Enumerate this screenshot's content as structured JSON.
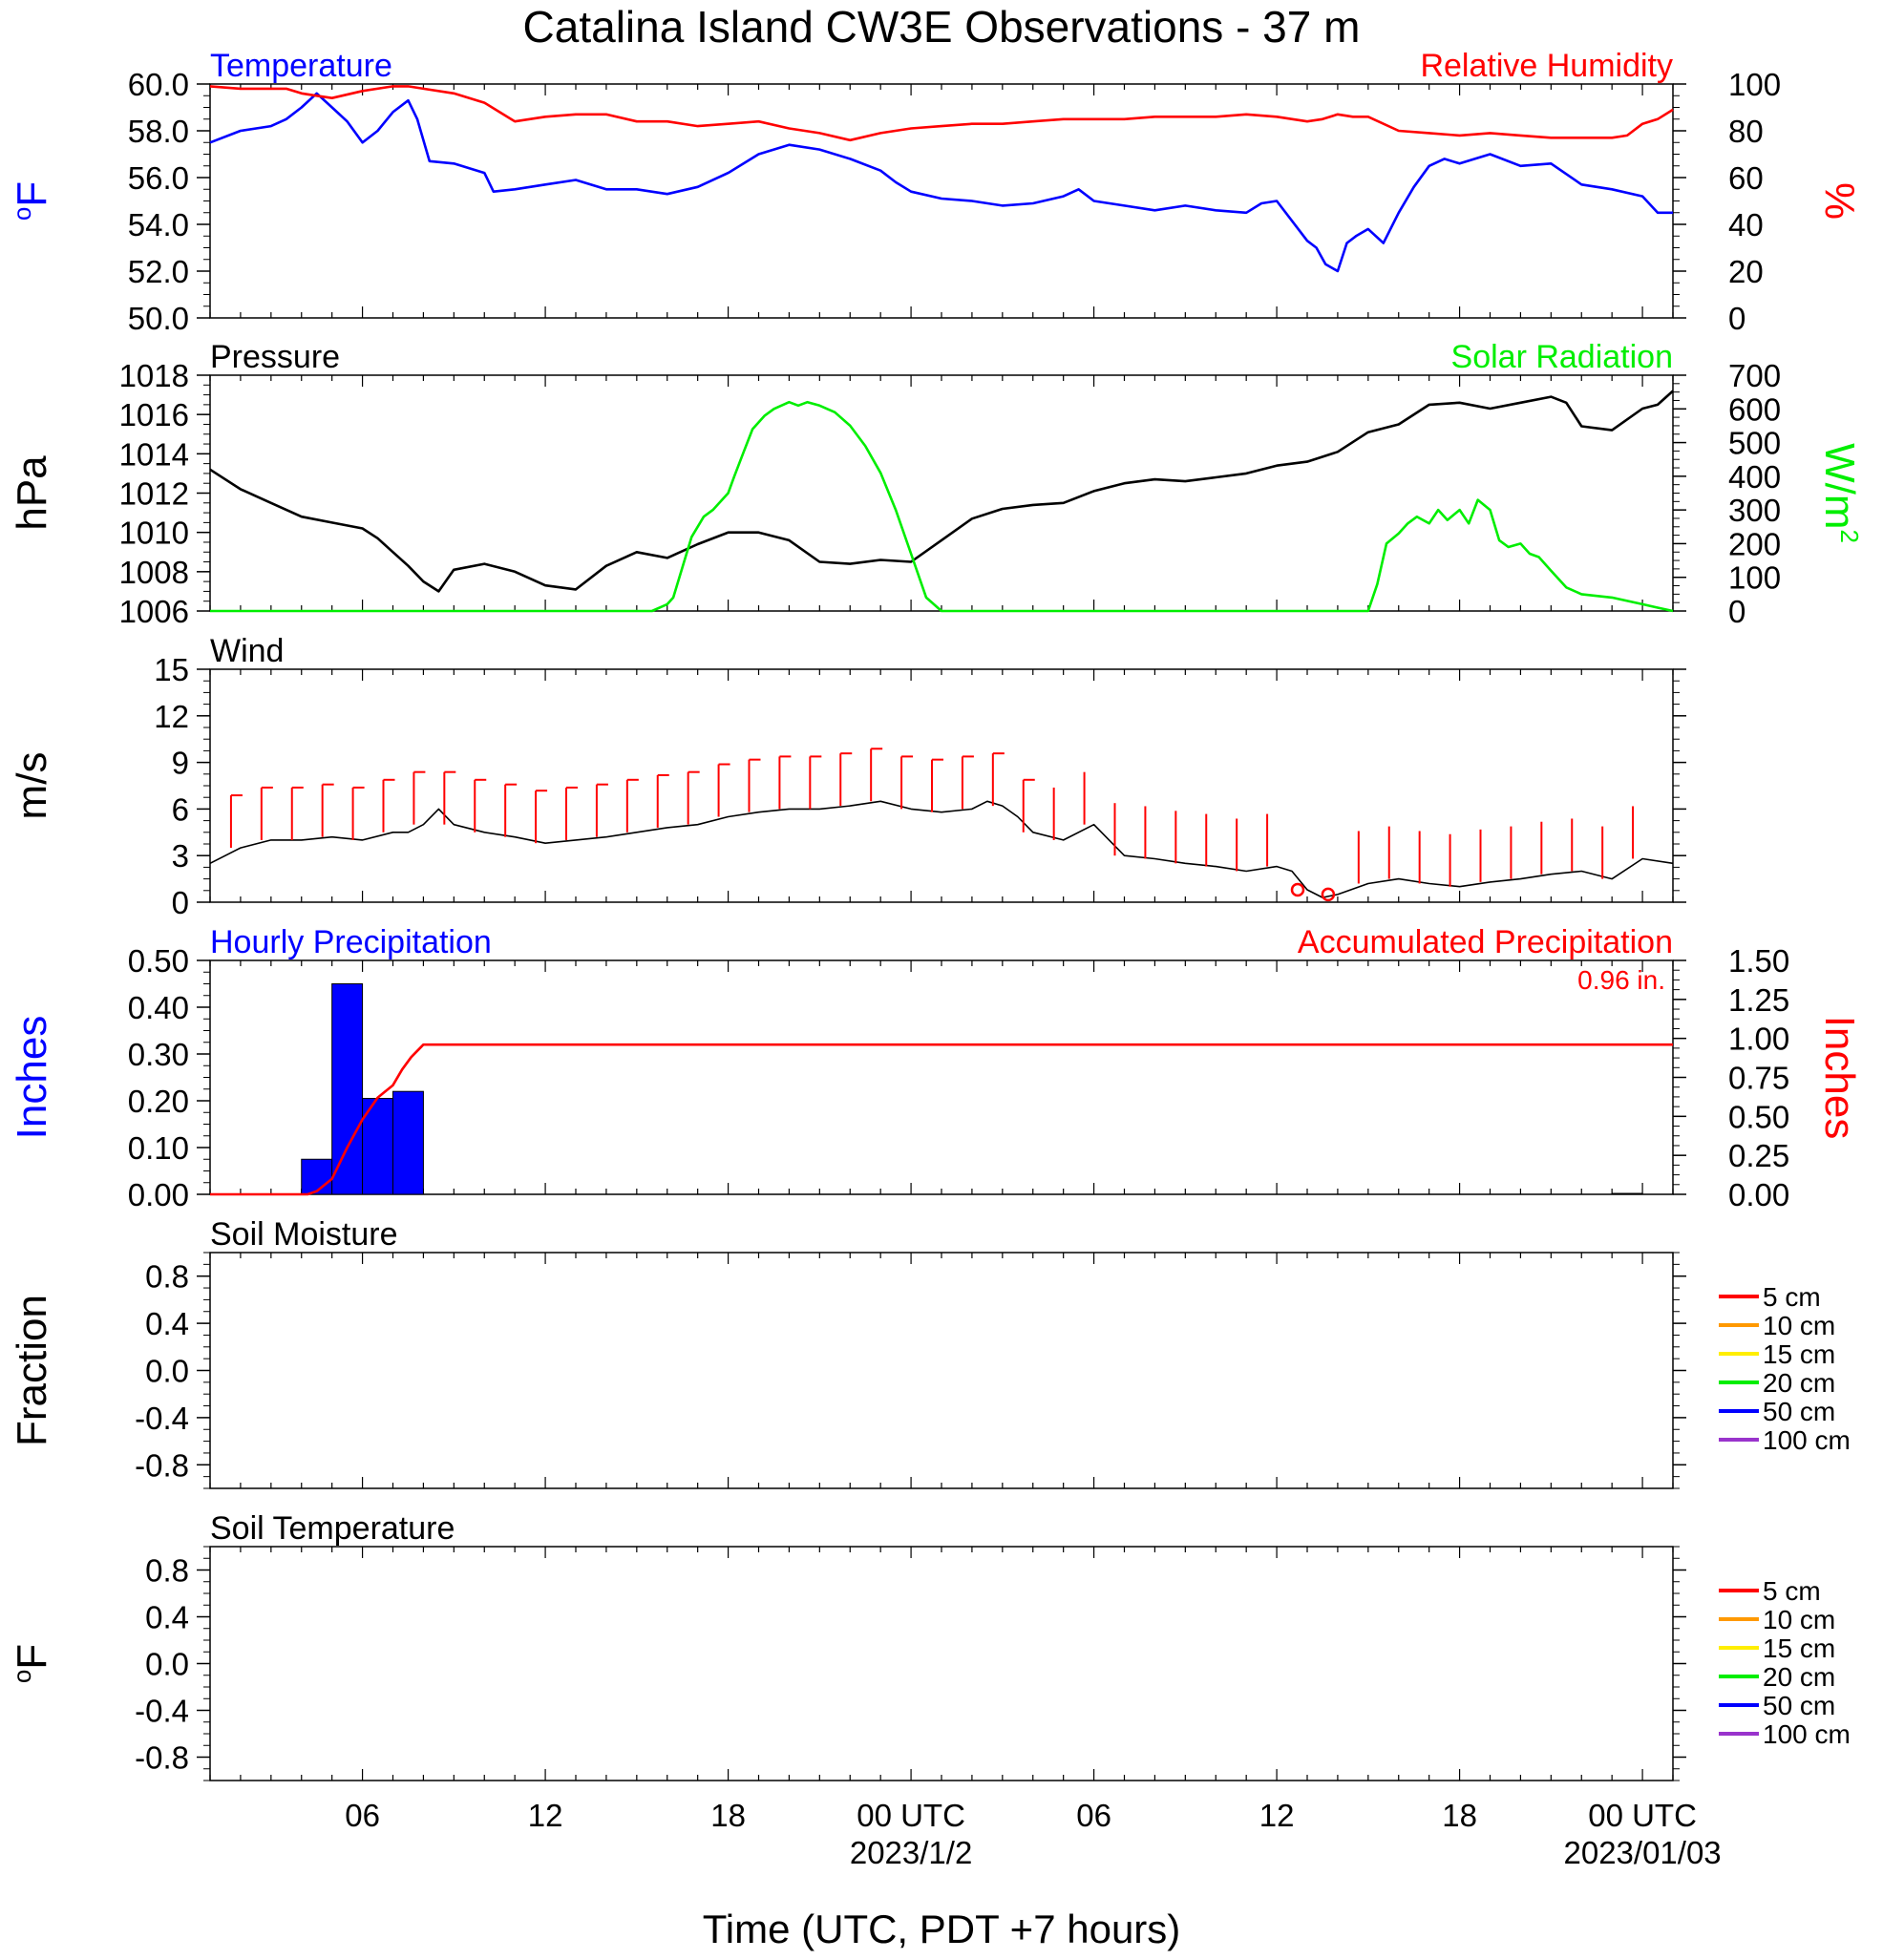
{
  "title": "Catalina Island CW3E Observations - 37 m",
  "x_axis": {
    "label": "Time (UTC, PDT +7 hours)",
    "range_hours": [
      0,
      48
    ],
    "ticks": [
      {
        "h": 5,
        "label": "06"
      },
      {
        "h": 11,
        "label": "12"
      },
      {
        "h": 17,
        "label": "18"
      },
      {
        "h": 23,
        "label": "00 UTC"
      },
      {
        "h": 29,
        "label": "06"
      },
      {
        "h": 35,
        "label": "12"
      },
      {
        "h": 41,
        "label": "18"
      },
      {
        "h": 47,
        "label": "00 UTC"
      }
    ],
    "date_labels": [
      {
        "h": 23,
        "label": "2023/1/2"
      },
      {
        "h": 47,
        "label": "2023/01/03"
      }
    ]
  },
  "colors": {
    "temperature": "#0000ff",
    "humidity": "#ff0000",
    "pressure": "#000000",
    "solar": "#00ee00",
    "wind": "#000000",
    "barb": "#ff0000",
    "hourly": "#0000ff",
    "accum": "#ff0000"
  },
  "chart_data": [
    {
      "type": "line",
      "panel": "temperature-humidity",
      "left_title": "Temperature",
      "right_title": "Relative Humidity",
      "left_ylabel": "oF",
      "right_ylabel": "%",
      "left_ylim": [
        50,
        60
      ],
      "right_ylim": [
        0,
        100
      ],
      "left_ticks": [
        "50.0",
        "52.0",
        "54.0",
        "56.0",
        "58.0",
        "60.0"
      ],
      "right_ticks": [
        "0",
        "20",
        "40",
        "60",
        "80",
        "100"
      ],
      "series": [
        {
          "key": "temperature",
          "axis": "left",
          "x": [
            0,
            1,
            2,
            2.5,
            3,
            3.5,
            4,
            4.5,
            5,
            5.5,
            6,
            6.5,
            6.8,
            7.2,
            8,
            9,
            9.3,
            10,
            11,
            12,
            13,
            14,
            15,
            16,
            17,
            18,
            19,
            20,
            21,
            22,
            22.5,
            23,
            24,
            25,
            26,
            27,
            28,
            28.5,
            29,
            30,
            31,
            32,
            33,
            34,
            34.5,
            35,
            36,
            36.3,
            36.6,
            37,
            37.3,
            37.6,
            38,
            38.5,
            39,
            39.5,
            40,
            40.5,
            41,
            41.5,
            42,
            43,
            44,
            45,
            46,
            47,
            47.5,
            48
          ],
          "values": [
            57.5,
            58.0,
            58.2,
            58.5,
            59.0,
            59.6,
            59.0,
            58.4,
            57.5,
            58.0,
            58.8,
            59.3,
            58.5,
            56.7,
            56.6,
            56.2,
            55.4,
            55.5,
            55.7,
            55.9,
            55.5,
            55.5,
            55.3,
            55.6,
            56.2,
            57.0,
            57.4,
            57.2,
            56.8,
            56.3,
            55.8,
            55.4,
            55.1,
            55.0,
            54.8,
            54.9,
            55.2,
            55.5,
            55.0,
            54.8,
            54.6,
            54.8,
            54.6,
            54.5,
            54.9,
            55.0,
            53.3,
            53.0,
            52.3,
            52.0,
            53.2,
            53.5,
            53.8,
            53.2,
            54.5,
            55.6,
            56.5,
            56.8,
            56.6,
            56.8,
            57.0,
            56.5,
            56.6,
            55.7,
            55.5,
            55.2,
            54.5,
            54.5
          ]
        },
        {
          "key": "humidity",
          "axis": "right",
          "x": [
            0,
            1,
            2,
            2.5,
            3,
            3.5,
            4,
            5,
            6,
            6.5,
            7,
            8,
            9,
            9.5,
            10,
            11,
            12,
            13,
            14,
            15,
            16,
            17,
            18,
            19,
            20,
            21,
            22,
            23,
            24,
            25,
            26,
            27,
            28,
            29,
            30,
            31,
            32,
            33,
            34,
            35,
            36,
            36.5,
            37,
            37.5,
            38,
            39,
            40,
            41,
            42,
            43,
            44,
            45,
            46,
            46.5,
            47,
            47.5,
            48
          ],
          "values": [
            99,
            98,
            98,
            98,
            96,
            95,
            94,
            97,
            99,
            99,
            98,
            96,
            92,
            88,
            84,
            86,
            87,
            87,
            84,
            84,
            82,
            83,
            84,
            81,
            79,
            76,
            79,
            81,
            82,
            83,
            83,
            84,
            85,
            85,
            85,
            86,
            86,
            86,
            87,
            86,
            84,
            85,
            87,
            86,
            86,
            80,
            79,
            78,
            79,
            78,
            77,
            77,
            77,
            78,
            83,
            85,
            89
          ]
        }
      ]
    },
    {
      "type": "line",
      "panel": "pressure-solar",
      "left_title": "Pressure",
      "right_title": "Solar Radiation",
      "left_ylabel": "hPa",
      "right_ylabel": "W/m",
      "right_ylabel_sup": "2",
      "left_ylim": [
        1006,
        1018
      ],
      "right_ylim": [
        0,
        700
      ],
      "left_ticks": [
        "1006",
        "1008",
        "1010",
        "1012",
        "1014",
        "1016",
        "1018"
      ],
      "right_ticks": [
        "0",
        "100",
        "200",
        "300",
        "400",
        "500",
        "600",
        "700"
      ],
      "series": [
        {
          "key": "pressure",
          "axis": "left",
          "x": [
            0,
            1,
            2,
            3,
            4,
            5,
            5.5,
            6,
            6.5,
            7,
            7.5,
            8,
            9,
            10,
            11,
            12,
            13,
            14,
            15,
            16,
            17,
            18,
            19,
            20,
            21,
            22,
            23,
            24,
            25,
            26,
            27,
            28,
            29,
            30,
            31,
            32,
            33,
            34,
            35,
            36,
            37,
            38,
            39,
            40,
            41,
            42,
            43,
            44,
            44.5,
            45,
            46,
            47,
            47.5,
            48
          ],
          "values": [
            1013.2,
            1012.2,
            1011.5,
            1010.8,
            1010.5,
            1010.2,
            1009.7,
            1009.0,
            1008.3,
            1007.5,
            1007.0,
            1008.1,
            1008.4,
            1008.0,
            1007.3,
            1007.1,
            1008.3,
            1009.0,
            1008.7,
            1009.4,
            1010.0,
            1010.0,
            1009.6,
            1008.5,
            1008.4,
            1008.6,
            1008.5,
            1009.6,
            1010.7,
            1011.2,
            1011.4,
            1011.5,
            1012.1,
            1012.5,
            1012.7,
            1012.6,
            1012.8,
            1013.0,
            1013.4,
            1013.6,
            1014.1,
            1015.1,
            1015.5,
            1016.5,
            1016.6,
            1016.3,
            1016.6,
            1016.9,
            1016.6,
            1015.4,
            1015.2,
            1016.3,
            1016.5,
            1017.2
          ]
        },
        {
          "key": "solar",
          "axis": "right",
          "x": [
            0,
            14,
            14.5,
            15,
            15.2,
            15.5,
            15.8,
            16.2,
            16.5,
            17,
            17.2,
            17.5,
            17.8,
            18.2,
            18.5,
            19,
            19.3,
            19.6,
            20,
            20.5,
            21,
            21.5,
            22,
            22.5,
            23,
            23.5,
            24,
            37,
            38,
            38.3,
            38.6,
            39,
            39.3,
            39.6,
            40,
            40.3,
            40.6,
            41,
            41.3,
            41.6,
            42,
            42.3,
            42.6,
            43,
            43.3,
            43.6,
            44,
            44.5,
            45,
            46,
            46.5,
            47,
            47.5,
            48
          ],
          "values": [
            0,
            0,
            0,
            20,
            40,
            130,
            220,
            280,
            300,
            350,
            400,
            470,
            540,
            580,
            600,
            620,
            610,
            620,
            610,
            590,
            550,
            490,
            410,
            300,
            170,
            40,
            0,
            0,
            0,
            80,
            200,
            230,
            260,
            280,
            260,
            300,
            270,
            300,
            260,
            330,
            300,
            210,
            190,
            200,
            170,
            160,
            120,
            70,
            50,
            40,
            30,
            20,
            10,
            0
          ]
        }
      ]
    },
    {
      "type": "line",
      "panel": "wind",
      "left_title": "Wind",
      "left_ylabel": "m/s",
      "left_ylim": [
        0,
        15
      ],
      "left_ticks": [
        "0",
        "3",
        "6",
        "9",
        "12",
        "15"
      ],
      "series": [
        {
          "key": "wind",
          "axis": "left",
          "x": [
            0,
            1,
            2,
            3,
            4,
            5,
            6,
            6.5,
            7,
            7.5,
            8,
            9,
            10,
            11,
            12,
            13,
            14,
            15,
            16,
            17,
            18,
            19,
            20,
            21,
            22,
            23,
            24,
            25,
            25.5,
            26,
            26.5,
            27,
            28,
            29,
            30,
            31,
            32,
            33,
            34,
            35,
            35.5,
            36,
            36.5,
            37,
            38,
            39,
            40,
            41,
            42,
            43,
            44,
            45,
            46,
            47,
            48
          ],
          "values": [
            2.5,
            3.5,
            4.0,
            4.0,
            4.2,
            4.0,
            4.5,
            4.5,
            5.0,
            6.0,
            5.0,
            4.5,
            4.2,
            3.8,
            4.0,
            4.2,
            4.5,
            4.8,
            5.0,
            5.5,
            5.8,
            6.0,
            6.0,
            6.2,
            6.5,
            6.0,
            5.8,
            6.0,
            6.5,
            6.2,
            5.5,
            4.5,
            4.0,
            5.0,
            3.0,
            2.8,
            2.5,
            2.3,
            2.0,
            2.3,
            2.0,
            0.8,
            0.3,
            0.5,
            1.2,
            1.5,
            1.2,
            1.0,
            1.3,
            1.5,
            1.8,
            2.0,
            1.5,
            2.8,
            2.5
          ]
        }
      ]
    },
    {
      "type": "bar",
      "panel": "precipitation",
      "left_title": "Hourly Precipitation",
      "right_title": "Accumulated Precipitation",
      "total_label": "0.96 in.",
      "left_ylabel": "Inches",
      "right_ylabel": "Inches",
      "left_ylim": [
        0,
        0.5
      ],
      "right_ylim": [
        0,
        1.5
      ],
      "left_ticks": [
        "0.00",
        "0.10",
        "0.20",
        "0.30",
        "0.40",
        "0.50"
      ],
      "right_ticks": [
        "0.00",
        "0.25",
        "0.50",
        "0.75",
        "1.00",
        "1.25",
        "1.50"
      ],
      "bars": [
        {
          "start": 3,
          "end": 4,
          "value": 0.075
        },
        {
          "start": 4,
          "end": 5,
          "value": 0.45
        },
        {
          "start": 5,
          "end": 6,
          "value": 0.205
        },
        {
          "start": 6,
          "end": 7,
          "value": 0.22
        },
        {
          "start": 46,
          "end": 47,
          "value": 0.002
        }
      ],
      "series": [
        {
          "key": "accum",
          "axis": "right",
          "x": [
            0,
            3.2,
            3.5,
            4,
            4.5,
            5,
            5.5,
            6,
            6.3,
            6.6,
            7,
            48
          ],
          "values": [
            0,
            0,
            0.02,
            0.1,
            0.3,
            0.48,
            0.62,
            0.7,
            0.8,
            0.88,
            0.96,
            0.96
          ]
        }
      ]
    },
    {
      "type": "line",
      "panel": "soil-moisture",
      "left_title": "Soil Moisture",
      "left_ylabel": "Fraction",
      "left_ylim": [
        -1,
        1
      ],
      "left_ticks": [
        "-0.8",
        "-0.4",
        "0.0",
        "0.4",
        "0.8"
      ],
      "legend": [
        {
          "label": "5 cm",
          "color": "#ff0000"
        },
        {
          "label": "10 cm",
          "color": "#ff9900"
        },
        {
          "label": "15 cm",
          "color": "#ffee00"
        },
        {
          "label": "20 cm",
          "color": "#00ee00"
        },
        {
          "label": "50 cm",
          "color": "#0000ff"
        },
        {
          "label": "100 cm",
          "color": "#9933cc"
        }
      ]
    },
    {
      "type": "line",
      "panel": "soil-temperature",
      "left_title": "Soil Temperature",
      "left_ylabel": "oF",
      "left_ylim": [
        -1,
        1
      ],
      "left_ticks": [
        "-0.8",
        "-0.4",
        "0.0",
        "0.4",
        "0.8"
      ],
      "legend": [
        {
          "label": "5 cm",
          "color": "#ff0000"
        },
        {
          "label": "10 cm",
          "color": "#ff9900"
        },
        {
          "label": "15 cm",
          "color": "#ffee00"
        },
        {
          "label": "20 cm",
          "color": "#00ee00"
        },
        {
          "label": "50 cm",
          "color": "#0000ff"
        },
        {
          "label": "100 cm",
          "color": "#9933cc"
        }
      ]
    }
  ]
}
